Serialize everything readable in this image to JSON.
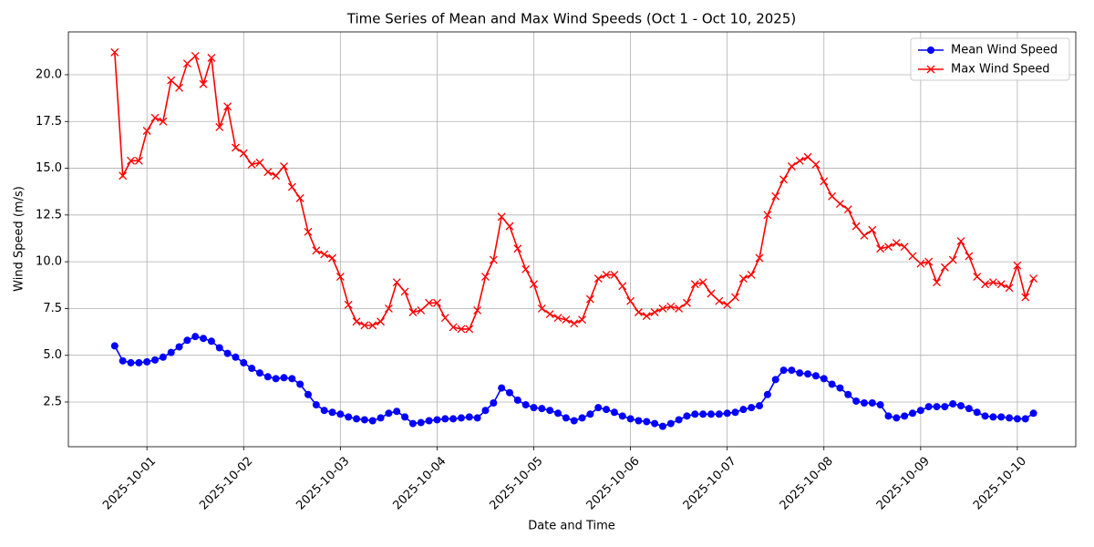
{
  "chart_data": {
    "type": "line",
    "title": "Time Series of Mean and Max Wind Speeds (Oct 1 - Oct 10, 2025)",
    "x_label": "Date and Time",
    "y_label": "Wind Speed (m/s)",
    "x": [
      "2025-09-30T16:00",
      "2025-09-30T18:00",
      "2025-09-30T20:00",
      "2025-09-30T22:00",
      "2025-10-01T00:00",
      "2025-10-01T02:00",
      "2025-10-01T04:00",
      "2025-10-01T06:00",
      "2025-10-01T08:00",
      "2025-10-01T10:00",
      "2025-10-01T12:00",
      "2025-10-01T14:00",
      "2025-10-01T16:00",
      "2025-10-01T18:00",
      "2025-10-01T20:00",
      "2025-10-01T22:00",
      "2025-10-02T00:00",
      "2025-10-02T02:00",
      "2025-10-02T04:00",
      "2025-10-02T06:00",
      "2025-10-02T08:00",
      "2025-10-02T10:00",
      "2025-10-02T12:00",
      "2025-10-02T14:00",
      "2025-10-02T16:00",
      "2025-10-02T18:00",
      "2025-10-02T20:00",
      "2025-10-02T22:00",
      "2025-10-03T00:00",
      "2025-10-03T02:00",
      "2025-10-03T04:00",
      "2025-10-03T06:00",
      "2025-10-03T08:00",
      "2025-10-03T10:00",
      "2025-10-03T12:00",
      "2025-10-03T14:00",
      "2025-10-03T16:00",
      "2025-10-03T18:00",
      "2025-10-03T20:00",
      "2025-10-03T22:00",
      "2025-10-04T00:00",
      "2025-10-04T02:00",
      "2025-10-04T04:00",
      "2025-10-04T06:00",
      "2025-10-04T08:00",
      "2025-10-04T10:00",
      "2025-10-04T12:00",
      "2025-10-04T14:00",
      "2025-10-04T16:00",
      "2025-10-04T18:00",
      "2025-10-04T20:00",
      "2025-10-04T22:00",
      "2025-10-05T00:00",
      "2025-10-05T02:00",
      "2025-10-05T04:00",
      "2025-10-05T06:00",
      "2025-10-05T08:00",
      "2025-10-05T10:00",
      "2025-10-05T12:00",
      "2025-10-05T14:00",
      "2025-10-05T16:00",
      "2025-10-05T18:00",
      "2025-10-05T20:00",
      "2025-10-05T22:00",
      "2025-10-06T00:00",
      "2025-10-06T02:00",
      "2025-10-06T04:00",
      "2025-10-06T06:00",
      "2025-10-06T08:00",
      "2025-10-06T10:00",
      "2025-10-06T12:00",
      "2025-10-06T14:00",
      "2025-10-06T16:00",
      "2025-10-06T18:00",
      "2025-10-06T20:00",
      "2025-10-06T22:00",
      "2025-10-07T00:00",
      "2025-10-07T02:00",
      "2025-10-07T04:00",
      "2025-10-07T06:00",
      "2025-10-07T08:00",
      "2025-10-07T10:00",
      "2025-10-07T12:00",
      "2025-10-07T14:00",
      "2025-10-07T16:00",
      "2025-10-07T18:00",
      "2025-10-07T20:00",
      "2025-10-07T22:00",
      "2025-10-08T00:00",
      "2025-10-08T02:00",
      "2025-10-08T04:00",
      "2025-10-08T06:00",
      "2025-10-08T08:00",
      "2025-10-08T10:00",
      "2025-10-08T12:00",
      "2025-10-08T14:00",
      "2025-10-08T16:00",
      "2025-10-08T18:00",
      "2025-10-08T20:00",
      "2025-10-08T22:00",
      "2025-10-09T00:00",
      "2025-10-09T02:00",
      "2025-10-09T04:00",
      "2025-10-09T06:00",
      "2025-10-09T08:00",
      "2025-10-09T10:00",
      "2025-10-09T12:00",
      "2025-10-09T14:00",
      "2025-10-09T16:00",
      "2025-10-09T18:00",
      "2025-10-09T20:00",
      "2025-10-09T22:00",
      "2025-10-10T00:00",
      "2025-10-10T02:00",
      "2025-10-10T04:00"
    ],
    "series": [
      {
        "name": "Mean Wind Speed",
        "color": "#0000ff",
        "marker": "circle",
        "values": [
          5.5,
          4.7,
          4.6,
          4.6,
          4.65,
          4.75,
          4.9,
          5.15,
          5.45,
          5.8,
          6.0,
          5.9,
          5.75,
          5.4,
          5.1,
          4.9,
          4.6,
          4.3,
          4.05,
          3.85,
          3.75,
          3.8,
          3.75,
          3.45,
          2.9,
          2.35,
          2.05,
          1.95,
          1.85,
          1.7,
          1.6,
          1.55,
          1.5,
          1.65,
          1.9,
          2.0,
          1.7,
          1.35,
          1.4,
          1.5,
          1.55,
          1.6,
          1.6,
          1.65,
          1.7,
          1.65,
          2.05,
          2.45,
          3.25,
          3.0,
          2.6,
          2.35,
          2.2,
          2.15,
          2.05,
          1.9,
          1.65,
          1.5,
          1.65,
          1.85,
          2.2,
          2.1,
          1.95,
          1.75,
          1.6,
          1.5,
          1.45,
          1.35,
          1.2,
          1.35,
          1.55,
          1.75,
          1.85,
          1.85,
          1.85,
          1.85,
          1.9,
          1.95,
          2.1,
          2.2,
          2.3,
          2.9,
          3.7,
          4.2,
          4.2,
          4.05,
          4.0,
          3.9,
          3.75,
          3.45,
          3.25,
          2.9,
          2.55,
          2.45,
          2.45,
          2.35,
          1.75,
          1.65,
          1.75,
          1.9,
          2.05,
          2.25,
          2.25,
          2.25,
          2.4,
          2.3,
          2.15,
          1.95,
          1.75,
          1.7,
          1.7,
          1.65,
          1.6,
          1.6,
          1.9
        ]
      },
      {
        "name": "Max Wind Speed",
        "color": "#ff0000",
        "marker": "x",
        "values": [
          21.2,
          14.6,
          15.4,
          15.4,
          17.0,
          17.7,
          17.5,
          19.7,
          19.3,
          20.6,
          21.0,
          19.5,
          20.9,
          17.2,
          18.3,
          16.1,
          15.8,
          15.2,
          15.3,
          14.8,
          14.6,
          15.1,
          14.0,
          13.4,
          11.6,
          10.6,
          10.4,
          10.2,
          9.2,
          7.7,
          6.8,
          6.6,
          6.6,
          6.8,
          7.5,
          8.9,
          8.4,
          7.3,
          7.4,
          7.8,
          7.8,
          7.0,
          6.5,
          6.4,
          6.4,
          7.4,
          9.2,
          10.1,
          12.4,
          11.9,
          10.7,
          9.6,
          8.8,
          7.5,
          7.2,
          7.0,
          6.9,
          6.7,
          6.9,
          8.0,
          9.1,
          9.3,
          9.3,
          8.7,
          7.9,
          7.3,
          7.1,
          7.3,
          7.5,
          7.6,
          7.5,
          7.8,
          8.8,
          8.9,
          8.3,
          7.9,
          7.7,
          8.1,
          9.1,
          9.3,
          10.2,
          12.5,
          13.5,
          14.4,
          15.1,
          15.4,
          15.6,
          15.2,
          14.3,
          13.5,
          13.1,
          12.8,
          11.9,
          11.4,
          11.7,
          10.7,
          10.8,
          11.0,
          10.8,
          10.3,
          9.9,
          10.0,
          8.9,
          9.7,
          10.1,
          11.1,
          10.3,
          9.2,
          8.8,
          8.9,
          8.8,
          8.6,
          9.8,
          8.1,
          9.1
        ]
      }
    ],
    "xlim": [
      "2025-09-30T04:30",
      "2025-10-10T14:30"
    ],
    "xticks": [
      "2025-10-01",
      "2025-10-02",
      "2025-10-03",
      "2025-10-04",
      "2025-10-05",
      "2025-10-06",
      "2025-10-07",
      "2025-10-08",
      "2025-10-09",
      "2025-10-10"
    ],
    "ylim": [
      0.11,
      22.29
    ],
    "yticks": [
      2.5,
      {
        "value": 5,
        "label": "5.0"
      },
      7.5,
      {
        "value": 10,
        "label": "10.0"
      },
      12.5,
      {
        "value": 15,
        "label": "15.0"
      },
      17.5,
      {
        "value": 20,
        "label": "20.0"
      }
    ],
    "grid": true,
    "legend": "upper right"
  }
}
